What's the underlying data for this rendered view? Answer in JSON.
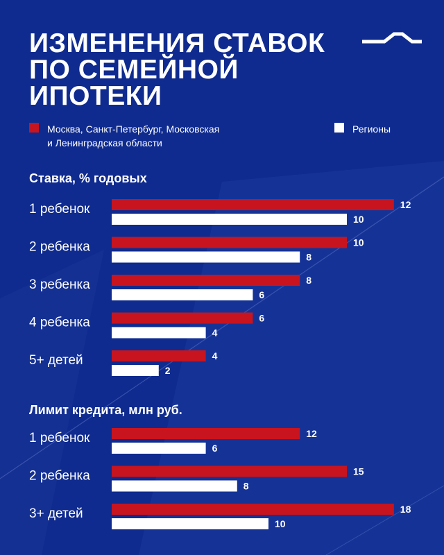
{
  "title_lines": [
    "ИЗМЕНЕНИЯ СТАВОК",
    "ПО СЕМЕЙНОЙ",
    "ИПОТЕКИ"
  ],
  "colors": {
    "background": "#0f2b8f",
    "moscow": "#c8141e",
    "regions": "#ffffff"
  },
  "logo_icon": "brand-logo-icon",
  "legend": {
    "moscow_lines": [
      "Москва, Санкт-Петербург, Московская",
      "и Ленинградская области"
    ],
    "regions": "Регионы"
  },
  "chart_data": [
    {
      "type": "bar",
      "orientation": "horizontal",
      "title": "Ставка, % годовых",
      "categories": [
        "1 ребенок",
        "2 ребенка",
        "3 ребенка",
        "4 ребенка",
        "5+ детей"
      ],
      "series": [
        {
          "name": "Москва, Санкт-Петербург, Московская и Ленинградская области",
          "values": [
            12,
            10,
            8,
            6,
            4
          ]
        },
        {
          "name": "Регионы",
          "values": [
            10,
            8,
            6,
            4,
            2
          ]
        }
      ],
      "xlim": [
        0,
        12
      ],
      "grid": false,
      "legend": "top"
    },
    {
      "type": "bar",
      "orientation": "horizontal",
      "title": "Лимит кредита, млн руб.",
      "categories": [
        "1 ребенок",
        "2 ребенка",
        "3+ детей"
      ],
      "series": [
        {
          "name": "Москва, Санкт-Петербург, Московская и Ленинградская области",
          "values": [
            12,
            15,
            18
          ]
        },
        {
          "name": "Регионы",
          "values": [
            6,
            8,
            10
          ]
        }
      ],
      "xlim": [
        0,
        18
      ],
      "grid": false,
      "legend": "top"
    }
  ]
}
